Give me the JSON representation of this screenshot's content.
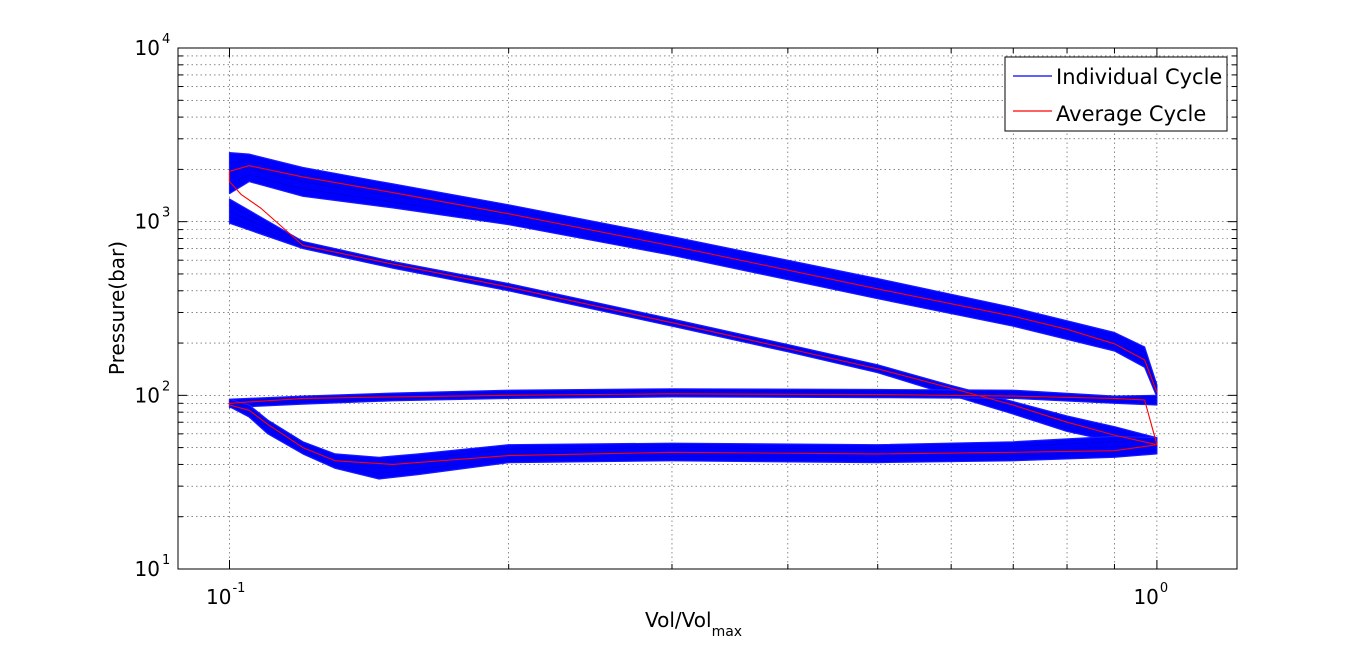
{
  "chart_data": {
    "type": "line",
    "title": "",
    "xlabel": "Vol/Vol",
    "xlabel_sub": "max",
    "ylabel": "Pressure(bar)",
    "x_scale": "log",
    "y_scale": "log",
    "xlim": [
      0.088,
      1.22
    ],
    "ylim": [
      10,
      10000
    ],
    "x_ticks": [
      {
        "value": 0.1,
        "base": "10",
        "exp": "-1"
      },
      {
        "value": 1,
        "base": "10",
        "exp": "0"
      }
    ],
    "y_ticks": [
      {
        "value": 10,
        "base": "10",
        "exp": "1"
      },
      {
        "value": 100,
        "base": "10",
        "exp": "2"
      },
      {
        "value": 1000,
        "base": "10",
        "exp": "3"
      },
      {
        "value": 10000,
        "base": "10",
        "exp": "4"
      }
    ],
    "grid": true,
    "legend": "top-right",
    "colors": {
      "individual": "#0000ff",
      "average": "#ff0000"
    },
    "series": [
      {
        "name": "Individual Cycle",
        "role": "band",
        "color": "#0000ff",
        "segments": [
          {
            "x": [
              0.1,
              0.105,
              0.12,
              0.15,
              0.2,
              0.3,
              0.5,
              0.7,
              0.9,
              0.97,
              1.0
            ],
            "y_low": [
              1450,
              1700,
              1400,
              1200,
              960,
              640,
              360,
              250,
              180,
              145,
              98
            ],
            "y_high": [
              2500,
              2450,
              2050,
              1650,
              1250,
              820,
              470,
              320,
              230,
              190,
              115
            ]
          },
          {
            "x": [
              0.1,
              0.12,
              0.15,
              0.2,
              0.3,
              0.4,
              0.5,
              0.6,
              0.7,
              0.8,
              0.9,
              1.0
            ],
            "y_low": [
              980,
              700,
              540,
              400,
              250,
              178,
              135,
              100,
              78,
              62,
              54,
              47
            ],
            "y_high": [
              1350,
              770,
              590,
              440,
              275,
              196,
              150,
              114,
              92,
              76,
              66,
              57
            ]
          },
          {
            "x": [
              0.1,
              0.12,
              0.15,
              0.2,
              0.3,
              0.5,
              0.7,
              0.9,
              1.0
            ],
            "y_low": [
              85,
              89,
              93,
              96,
              98,
              97,
              96,
              90,
              88
            ],
            "y_high": [
              95,
              99,
              103,
              107,
              109,
              108,
              107,
              99,
              100
            ]
          },
          {
            "x": [
              0.1,
              0.105,
              0.11,
              0.12,
              0.13,
              0.145,
              0.16,
              0.2,
              0.3,
              0.5,
              0.7,
              0.9,
              1.0
            ],
            "y_low": [
              86,
              75,
              60,
              46,
              38,
              33,
              35,
              41,
              42,
              41,
              42,
              44,
              46
            ],
            "y_high": [
              95,
              88,
              72,
              54,
              46,
              44,
              46,
              52,
              53,
              52,
              54,
              58,
              57
            ]
          }
        ]
      },
      {
        "name": "Average Cycle",
        "role": "line",
        "color": "#ff0000",
        "x": [
          1.0,
          0.97,
          0.9,
          0.8,
          0.7,
          0.5,
          0.3,
          0.2,
          0.15,
          0.12,
          0.105,
          0.1,
          0.1,
          0.103,
          0.108,
          0.12,
          0.15,
          0.2,
          0.3,
          0.4,
          0.5,
          0.6,
          0.7,
          0.8,
          0.9,
          1.0,
          0.97,
          0.9,
          0.7,
          0.5,
          0.3,
          0.2,
          0.15,
          0.12,
          0.1,
          0.1,
          0.105,
          0.11,
          0.12,
          0.13,
          0.15,
          0.2,
          0.3,
          0.5,
          0.7,
          0.9,
          1.0
        ],
        "y": [
          104,
          160,
          198,
          240,
          285,
          410,
          725,
          1110,
          1470,
          1810,
          2100,
          1950,
          1700,
          1430,
          1200,
          730,
          570,
          420,
          262,
          186,
          142,
          110,
          88,
          70,
          59,
          52,
          94,
          96,
          99,
          101,
          102,
          100,
          98,
          96,
          90,
          88,
          82,
          68,
          50,
          42,
          40,
          45,
          47,
          46,
          47,
          48,
          52
        ]
      }
    ]
  }
}
